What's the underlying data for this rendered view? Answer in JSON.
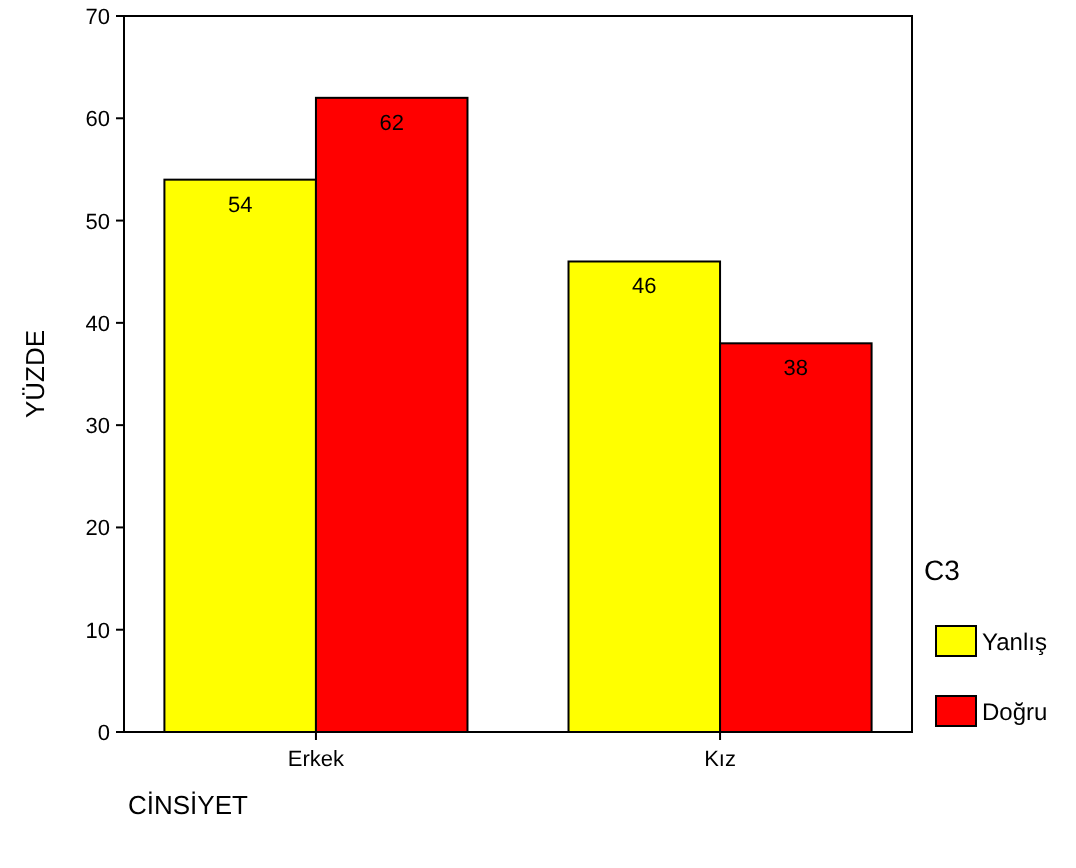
{
  "chart_data": {
    "type": "bar",
    "xlabel": "CİNSİYET",
    "ylabel": "YÜZDE",
    "legend_title": "C3",
    "categories": [
      "Erkek",
      "Kız"
    ],
    "series": [
      {
        "name": "Yanlış",
        "color": "#ffff00",
        "values": [
          54,
          46
        ]
      },
      {
        "name": "Doğru",
        "color": "#ff0000",
        "values": [
          62,
          38
        ]
      }
    ],
    "ylim": [
      0,
      70
    ],
    "yticks": [
      0,
      10,
      20,
      30,
      40,
      50,
      60,
      70
    ],
    "data_labels": true,
    "legend": "right",
    "grid": false
  }
}
